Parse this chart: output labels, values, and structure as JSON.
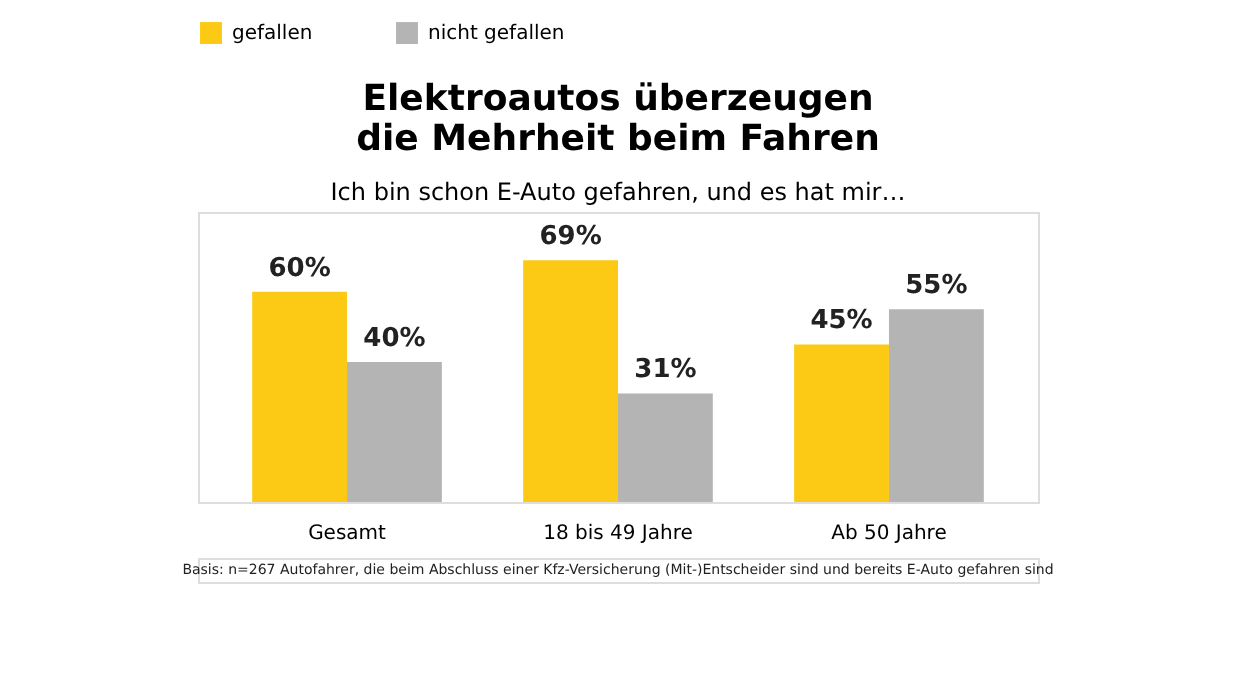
{
  "chart_data": {
    "type": "bar",
    "title": "Elektroautos überzeugen\ndie Mehrheit beim Fahren",
    "subtitle": "Ich bin schon E-Auto gefahren, und es hat mir…",
    "categories": [
      "Gesamt",
      "18 bis 49 Jahre",
      "Ab 50 Jahre"
    ],
    "series": [
      {
        "name": "gefallen",
        "color": "#fcc915",
        "values": [
          60,
          69,
          45
        ],
        "value_labels": [
          "60%",
          "69%",
          "45%"
        ]
      },
      {
        "name": "nicht gefallen",
        "color": "#b4b4b4",
        "values": [
          40,
          31,
          55
        ],
        "value_labels": [
          "40%",
          "31%",
          "55%"
        ]
      }
    ],
    "legend": "top",
    "grid": false,
    "annotations": [
      "Basis: n=267 Autofahrer, die beim Abschluss einer Kfz-Versicherung (Mit-)Entscheider sind und bereits E-Auto gefahren sind"
    ]
  }
}
